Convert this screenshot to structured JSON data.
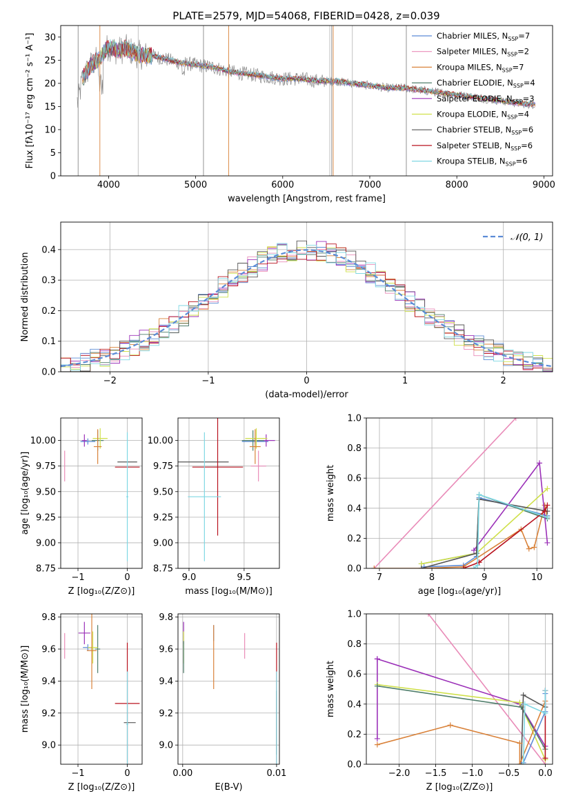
{
  "figure_title": "PLATE=2579, MJD=54068, FIBERID=0428, z=0.039",
  "colors": {
    "chabrier_miles": "#5b8bd6",
    "salpeter_miles": "#e98bb8",
    "kroupa_miles": "#d9823a",
    "chabrier_elodie": "#4e7d6a",
    "salpeter_elodie": "#9b30b8",
    "kroupa_elodie": "#cfe04a",
    "chabrier_stelib": "#555555",
    "salpeter_stelib": "#b8121e",
    "kroupa_stelib": "#7fd7e3",
    "grid": "#b0b0b0"
  },
  "chart_data": [
    {
      "id": "spectrum",
      "type": "line",
      "title": "PLATE=2579, MJD=54068, FIBERID=0428, z=0.039",
      "xlabel": "wavelength [Angstrom, rest frame]",
      "ylabel": "Flux [fλ10⁻¹⁷ erg cm⁻² s⁻¹ A⁻¹]",
      "xlim": [
        3450,
        9100
      ],
      "ylim": [
        0,
        32.5
      ],
      "xticks": [
        "4000",
        "5000",
        "6000",
        "7000",
        "8000",
        "9000"
      ],
      "xtick_values": [
        4000,
        5000,
        6000,
        7000,
        8000,
        9000
      ],
      "yticks": [
        "0",
        "5",
        "10",
        "15",
        "20",
        "25",
        "30"
      ],
      "ytick_values": [
        0,
        5,
        10,
        15,
        20,
        25,
        30
      ],
      "grid": false,
      "legend_position": "top-right",
      "legend": [
        {
          "label": "Chabrier MILES, N",
          "sub": "SSP",
          "count": "=7",
          "color": "#5b8bd6"
        },
        {
          "label": "Salpeter MILES, N",
          "sub": "SSP",
          "count": "=2",
          "color": "#e98bb8"
        },
        {
          "label": "Kroupa MILES, N",
          "sub": "SSP",
          "count": "=7",
          "color": "#d9823a"
        },
        {
          "label": "Chabrier ELODIE, N",
          "sub": "SSP",
          "count": "=4",
          "color": "#4e7d6a"
        },
        {
          "label": "Salpeter ELODIE, N",
          "sub": "SSP",
          "count": "=3",
          "color": "#9b30b8"
        },
        {
          "label": "Kroupa ELODIE, N",
          "sub": "SSP",
          "count": "=4",
          "color": "#cfe04a"
        },
        {
          "label": "Chabrier STELIB, N",
          "sub": "SSP",
          "count": "=6",
          "color": "#555555"
        },
        {
          "label": "Salpeter STELIB, N",
          "sub": "SSP",
          "count": "=6",
          "color": "#b8121e"
        },
        {
          "label": "Kroupa STELIB, N",
          "sub": "SSP",
          "count": "=6",
          "color": "#7fd7e3"
        }
      ],
      "data_trend": {
        "x": [
          3650,
          3700,
          3800,
          3900,
          4000,
          4100,
          4200,
          4300,
          4400,
          4500,
          4600,
          4800,
          5000,
          5200,
          5400,
          5600,
          5800,
          6000,
          6200,
          6400,
          6600,
          6800,
          7000,
          7200,
          7400,
          7600,
          7800,
          8000,
          8200,
          8400,
          8600,
          8800
        ],
        "y": [
          16,
          21,
          24,
          25.5,
          28,
          27,
          27.5,
          26.5,
          26,
          26,
          25.5,
          24.5,
          24,
          23.5,
          22.5,
          22,
          21.5,
          21,
          21,
          20.5,
          20.5,
          20,
          19.5,
          19,
          19,
          18.5,
          18,
          17.5,
          17,
          16.5,
          16,
          15.5
        ]
      },
      "vertical_spikes_x": [
        3650,
        3900,
        4340,
        5090,
        5380,
        6540,
        6563,
        6580,
        6800,
        7420
      ]
    },
    {
      "id": "residuals",
      "type": "line",
      "xlabel": "(data-model)/error",
      "ylabel": "Normed distribution",
      "xlim": [
        -2.5,
        2.5
      ],
      "ylim": [
        0,
        0.49
      ],
      "xticks": [
        "−2",
        "−1",
        "0",
        "1",
        "2"
      ],
      "xtick_values": [
        -2,
        -1,
        0,
        1,
        2
      ],
      "yticks": [
        "0.0",
        "0.1",
        "0.2",
        "0.3",
        "0.4"
      ],
      "ytick_values": [
        0,
        0.1,
        0.2,
        0.3,
        0.4
      ],
      "grid": true,
      "legend_position": "top-right",
      "legend": [
        {
          "label": "𝒩(0, 1)",
          "color": "#5b8bd6"
        }
      ],
      "normal_curve": {
        "mean": 0,
        "sigma": 1
      },
      "bin_width": 0.1
    },
    {
      "id": "age-vs-z",
      "type": "scatter",
      "xlabel": "Z [log₁₀(Z/Z⊙)]",
      "ylabel": "age  [log₁₀(age/yr)]",
      "xlim": [
        -1.35,
        0.3
      ],
      "ylim": [
        8.75,
        10.22
      ],
      "xticks": [
        "−1",
        "0"
      ],
      "xtick_values": [
        -1,
        0
      ],
      "yticks": [
        "8.75",
        "9.00",
        "9.25",
        "9.50",
        "9.75",
        "10.00"
      ],
      "ytick_values": [
        8.75,
        9.0,
        9.25,
        9.5,
        9.75,
        10.0
      ],
      "grid": true,
      "crosses": [
        {
          "color": "#e98bb8",
          "x": -1.27,
          "y": 9.75,
          "xerr": 0,
          "yerr": 0.15
        },
        {
          "color": "#5b8bd6",
          "x": -0.8,
          "y": 9.99,
          "xerr": 0.15,
          "yerr": 0.03
        },
        {
          "color": "#9b30b8",
          "x": -0.87,
          "y": 10.0,
          "xerr": 0.05,
          "yerr": 0.06
        },
        {
          "color": "#4e7d6a",
          "x": -0.6,
          "y": 10.0,
          "xerr": 0.12,
          "yerr": 0.1
        },
        {
          "color": "#cfe04a",
          "x": -0.55,
          "y": 10.02,
          "xerr": 0.15,
          "yerr": 0.1
        },
        {
          "color": "#d9823a",
          "x": -0.6,
          "y": 9.94,
          "xerr": 0.08,
          "yerr": 0.17
        },
        {
          "color": "#555555",
          "x": 0.0,
          "y": 9.79,
          "xerr": 0.2,
          "yerr": 0.0
        },
        {
          "color": "#b8121e",
          "x": 0.0,
          "y": 9.74,
          "xerr": 0.25,
          "yerr": 0.0
        },
        {
          "color": "#7fd7e3",
          "x": 0.0,
          "y": 9.45,
          "xerr": 0.02,
          "yerr": 0.63
        }
      ]
    },
    {
      "id": "age-vs-mass",
      "type": "scatter",
      "xlabel": "mass [log₁₀(M/M⊙)]",
      "ylabel": "",
      "xlim": [
        8.9,
        9.82
      ],
      "ylim": [
        8.75,
        10.22
      ],
      "xticks": [
        "9.0",
        "9.5"
      ],
      "xtick_values": [
        9.0,
        9.5
      ],
      "yticks": [
        "8.75",
        "9.00",
        "9.25",
        "9.50",
        "9.75",
        "10.00"
      ],
      "ytick_values": [
        8.75,
        9.0,
        9.25,
        9.5,
        9.75,
        10.0
      ],
      "grid": true,
      "crosses": [
        {
          "color": "#e98bb8",
          "x": 9.63,
          "y": 9.75,
          "xerr": 0.07,
          "yerr": 0.15
        },
        {
          "color": "#5b8bd6",
          "x": 9.6,
          "y": 9.99,
          "xerr": 0.12,
          "yerr": 0.03
        },
        {
          "color": "#9b30b8",
          "x": 9.7,
          "y": 10.0,
          "xerr": 0.08,
          "yerr": 0.06
        },
        {
          "color": "#4e7d6a",
          "x": 9.58,
          "y": 10.0,
          "xerr": 0.1,
          "yerr": 0.1
        },
        {
          "color": "#cfe04a",
          "x": 9.61,
          "y": 10.02,
          "xerr": 0.1,
          "yerr": 0.1
        },
        {
          "color": "#d9823a",
          "x": 9.6,
          "y": 9.94,
          "xerr": 0.05,
          "yerr": 0.17
        },
        {
          "color": "#555555",
          "x": 9.13,
          "y": 9.79,
          "xerr": 0.23,
          "yerr": 0.0
        },
        {
          "color": "#b8121e",
          "x": 9.26,
          "y": 9.74,
          "xerr": 0.23,
          "yerr": 0.67
        },
        {
          "color": "#7fd7e3",
          "x": 9.14,
          "y": 9.45,
          "xerr": 0.15,
          "yerr": 0.63
        }
      ]
    },
    {
      "id": "weight-vs-age",
      "type": "line",
      "xlabel": "age  [log₁₀(age/yr)]",
      "ylabel": "mass weight",
      "xlim": [
        6.75,
        10.3
      ],
      "ylim": [
        0,
        1.0
      ],
      "xticks": [
        "7",
        "8",
        "9",
        "10"
      ],
      "xtick_values": [
        7,
        8,
        9,
        10
      ],
      "yticks": [
        "0.0",
        "0.2",
        "0.4",
        "0.6",
        "0.8",
        "1.0"
      ],
      "ytick_values": [
        0,
        0.2,
        0.4,
        0.6,
        0.8,
        1.0
      ],
      "grid": true,
      "series": [
        {
          "color": "#e98bb8",
          "x": [
            6.9,
            9.6
          ],
          "y": [
            0.0,
            1.0
          ]
        },
        {
          "color": "#5b8bd6",
          "x": [
            7.85,
            8.6,
            8.85,
            8.9,
            10.2
          ],
          "y": [
            0.01,
            0.02,
            0.08,
            0.47,
            0.35
          ]
        },
        {
          "color": "#d9823a",
          "x": [
            6.9,
            7.8,
            8.6,
            9.7,
            9.85,
            9.95,
            10.15,
            10.2
          ],
          "y": [
            0.0,
            0.0,
            0.01,
            0.26,
            0.13,
            0.14,
            0.42,
            0.34
          ]
        },
        {
          "color": "#4e7d6a",
          "x": [
            7.8,
            8.85,
            8.9,
            10.2
          ],
          "y": [
            0.03,
            0.1,
            0.49,
            0.33
          ]
        },
        {
          "color": "#9b30b8",
          "x": [
            8.8,
            10.05,
            10.2
          ],
          "y": [
            0.12,
            0.7,
            0.17
          ]
        },
        {
          "color": "#cfe04a",
          "x": [
            7.8,
            8.85,
            10.2
          ],
          "y": [
            0.03,
            0.1,
            0.53
          ]
        },
        {
          "color": "#555555",
          "x": [
            7.8,
            8.85,
            8.9,
            10.2
          ],
          "y": [
            0.0,
            0.1,
            0.46,
            0.38
          ]
        },
        {
          "color": "#b8121e",
          "x": [
            8.6,
            8.9,
            10.15,
            10.2
          ],
          "y": [
            0.0,
            0.04,
            0.38,
            0.42
          ]
        },
        {
          "color": "#7fd7e3",
          "x": [
            8.8,
            8.87,
            8.9,
            10.2
          ],
          "y": [
            0.0,
            0.02,
            0.49,
            0.34
          ]
        }
      ]
    },
    {
      "id": "mass-vs-z",
      "type": "scatter",
      "xlabel": "Z [log₁₀(Z/Z⊙)]",
      "ylabel": "mass [log₁₀(M/M⊙)]",
      "xlim": [
        -1.35,
        0.3
      ],
      "ylim": [
        8.88,
        9.82
      ],
      "xticks": [
        "−1",
        "0"
      ],
      "xtick_values": [
        -1,
        0
      ],
      "yticks": [
        "9.0",
        "9.2",
        "9.4",
        "9.6",
        "9.8"
      ],
      "ytick_values": [
        9.0,
        9.2,
        9.4,
        9.6,
        9.8
      ],
      "grid": true,
      "crosses": [
        {
          "color": "#e98bb8",
          "x": -1.27,
          "y": 9.62,
          "xerr": 0,
          "yerr": 0.08
        },
        {
          "color": "#5b8bd6",
          "x": -0.8,
          "y": 9.61,
          "xerr": 0.1,
          "yerr": 0.02
        },
        {
          "color": "#9b30b8",
          "x": -0.87,
          "y": 9.7,
          "xerr": 0.12,
          "yerr": 0.07
        },
        {
          "color": "#4e7d6a",
          "x": -0.6,
          "y": 9.6,
          "xerr": 0.05,
          "yerr": 0.15
        },
        {
          "color": "#cfe04a",
          "x": -0.7,
          "y": 9.61,
          "xerr": 0.1,
          "yerr": 0.1
        },
        {
          "color": "#d9823a",
          "x": -0.72,
          "y": 9.59,
          "xerr": 0.1,
          "yerr": 0.24
        },
        {
          "color": "#555555",
          "x": 0.05,
          "y": 9.14,
          "xerr": 0.12,
          "yerr": 0.0
        },
        {
          "color": "#b8121e",
          "x": 0.0,
          "y": 9.26,
          "xerr": 0.25,
          "yerr": 0.38
        },
        {
          "color": "#7fd7e3",
          "x": 0.0,
          "y": 9.13,
          "xerr": 0.02,
          "yerr": 0.33
        }
      ]
    },
    {
      "id": "mass-vs-ebv",
      "type": "scatter",
      "xlabel": "E(B-V)",
      "ylabel": "",
      "xlim": [
        -0.0005,
        0.0103
      ],
      "ylim": [
        8.88,
        9.82
      ],
      "xticks": [
        "0.00",
        "0.01"
      ],
      "xtick_values": [
        0.0,
        0.01
      ],
      "yticks": [
        "9.0",
        "9.2",
        "9.4",
        "9.6",
        "9.8"
      ],
      "ytick_values": [
        9.0,
        9.2,
        9.4,
        9.6,
        9.8
      ],
      "grid": true,
      "crosses": [
        {
          "color": "#9b30b8",
          "x": 0.0001,
          "y": 9.7,
          "xerr": 0,
          "yerr": 0.07
        },
        {
          "color": "#cfe04a",
          "x": 0.0001,
          "y": 9.61,
          "xerr": 0,
          "yerr": 0.1
        },
        {
          "color": "#4e7d6a",
          "x": 0.0001,
          "y": 9.55,
          "xerr": 0,
          "yerr": 0.1
        },
        {
          "color": "#5b8bd6",
          "x": 0.0033,
          "y": 9.7,
          "xerr": 0,
          "yerr": 0.05
        },
        {
          "color": "#d9823a",
          "x": 0.0033,
          "y": 9.55,
          "xerr": 0,
          "yerr": 0.2
        },
        {
          "color": "#e98bb8",
          "x": 0.0066,
          "y": 9.62,
          "xerr": 0,
          "yerr": 0.08
        },
        {
          "color": "#b8121e",
          "x": 0.01,
          "y": 9.26,
          "xerr": 0,
          "yerr": 0.38
        },
        {
          "color": "#555555",
          "x": 0.01,
          "y": 9.14,
          "xerr": 0,
          "yerr": 0.2
        },
        {
          "color": "#7fd7e3",
          "x": 0.01,
          "y": 9.13,
          "xerr": 0,
          "yerr": 0.33
        }
      ]
    },
    {
      "id": "weight-vs-z",
      "type": "line",
      "xlabel": "Z [log₁₀(Z/Z⊙)]",
      "ylabel": "mass weight",
      "xlim": [
        -2.45,
        0.1
      ],
      "ylim": [
        0,
        1.0
      ],
      "xticks": [
        "−2.0",
        "−1.5",
        "−1.0",
        "−0.5",
        "0.0"
      ],
      "xtick_values": [
        -2.0,
        -1.5,
        -1.0,
        -0.5,
        0.0
      ],
      "yticks": [
        "0.0",
        "0.2",
        "0.4",
        "0.6",
        "0.8",
        "1.0"
      ],
      "ytick_values": [
        0,
        0.2,
        0.4,
        0.6,
        0.8,
        1.0
      ],
      "grid": true,
      "series": [
        {
          "color": "#e98bb8",
          "x": [
            -1.6,
            0.0
          ],
          "y": [
            1.0,
            0.0
          ]
        },
        {
          "color": "#9b30b8",
          "x": [
            -2.3,
            -2.3,
            -2.3,
            -0.35,
            0.0
          ],
          "y": [
            0.17,
            0.7,
            0.7,
            0.4,
            0.12
          ]
        },
        {
          "color": "#cfe04a",
          "x": [
            -2.3,
            -0.35,
            0.0
          ],
          "y": [
            0.53,
            0.41,
            0.03
          ]
        },
        {
          "color": "#4e7d6a",
          "x": [
            -2.3,
            -0.33,
            0.0
          ],
          "y": [
            0.52,
            0.38,
            0.1
          ]
        },
        {
          "color": "#555555",
          "x": [
            -0.33,
            -0.3,
            0.0
          ],
          "y": [
            0.0,
            0.46,
            0.38
          ]
        },
        {
          "color": "#d9823a",
          "x": [
            -2.3,
            -1.3,
            -0.35,
            -0.35,
            0.0
          ],
          "y": [
            0.13,
            0.26,
            0.14,
            0.0,
            0.42
          ]
        },
        {
          "color": "#b8121e",
          "x": [
            0.0,
            0.0
          ],
          "y": [
            0.04,
            0.49
          ]
        },
        {
          "color": "#5b8bd6",
          "x": [
            -0.3,
            0.0,
            0.0
          ],
          "y": [
            0.01,
            0.35,
            0.47
          ]
        },
        {
          "color": "#7fd7e3",
          "x": [
            -0.3,
            -0.28,
            0.0,
            0.0
          ],
          "y": [
            0.0,
            0.4,
            0.34,
            0.49
          ]
        }
      ]
    }
  ]
}
